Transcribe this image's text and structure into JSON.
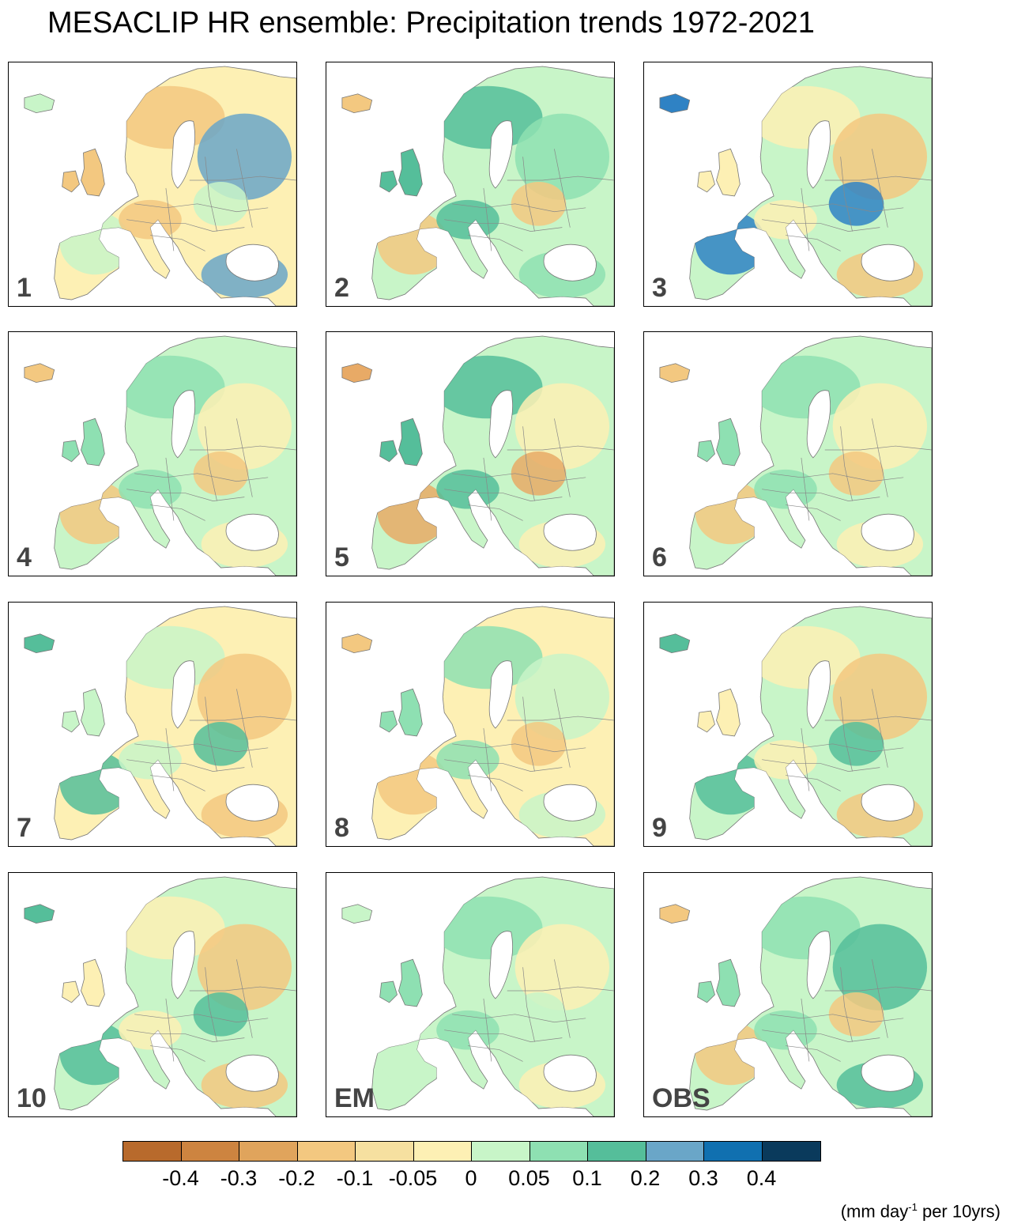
{
  "title": "MESACLIP HR ensemble: Precipitation trends 1972-2021",
  "panels": [
    {
      "label": "1",
      "dominant": "#fdf0b4",
      "patch_a": "#f3c880",
      "patch_b": "#6aa6c8",
      "patch_c": "#c8f5c8"
    },
    {
      "label": "2",
      "dominant": "#c8f5c8",
      "patch_a": "#55be9a",
      "patch_b": "#8ee0b2",
      "patch_c": "#f3c880"
    },
    {
      "label": "3",
      "dominant": "#c8f5c8",
      "patch_a": "#fdf0b4",
      "patch_b": "#f3c880",
      "patch_c": "#2f82c4"
    },
    {
      "label": "4",
      "dominant": "#c8f5c8",
      "patch_a": "#8ee0b2",
      "patch_b": "#fdf0b4",
      "patch_c": "#f3c880"
    },
    {
      "label": "5",
      "dominant": "#c8f5c8",
      "patch_a": "#55be9a",
      "patch_b": "#fdf0b4",
      "patch_c": "#e8aa66"
    },
    {
      "label": "6",
      "dominant": "#c8f5c8",
      "patch_a": "#8ee0b2",
      "patch_b": "#fdf0b4",
      "patch_c": "#f3c880"
    },
    {
      "label": "7",
      "dominant": "#fdf0b4",
      "patch_a": "#c8f5c8",
      "patch_b": "#f3c880",
      "patch_c": "#55be9a"
    },
    {
      "label": "8",
      "dominant": "#fdf0b4",
      "patch_a": "#8ee0b2",
      "patch_b": "#c8f5c8",
      "patch_c": "#f3c880"
    },
    {
      "label": "9",
      "dominant": "#c8f5c8",
      "patch_a": "#fdf0b4",
      "patch_b": "#f3c880",
      "patch_c": "#55be9a"
    },
    {
      "label": "10",
      "dominant": "#c8f5c8",
      "patch_a": "#fdf0b4",
      "patch_b": "#f3c880",
      "patch_c": "#55be9a"
    },
    {
      "label": "EM",
      "dominant": "#c8f5c8",
      "patch_a": "#8ee0b2",
      "patch_b": "#fdf0b4",
      "patch_c": "#c8f5c8"
    },
    {
      "label": "OBS",
      "dominant": "#c8f5c8",
      "patch_a": "#8ee0b2",
      "patch_b": "#55be9a",
      "patch_c": "#f3c880"
    }
  ],
  "colorbar": {
    "colors": [
      "#b86a2c",
      "#cd8440",
      "#e0a45c",
      "#f3c880",
      "#f6e0a0",
      "#fdf0b4",
      "#c8f5c8",
      "#8ee0b2",
      "#55be9a",
      "#6aa6c8",
      "#1070b0",
      "#0a3a5c"
    ],
    "tick_labels": [
      "-0.4",
      "-0.3",
      "-0.2",
      "-0.1",
      "-0.05",
      "0",
      "0.05",
      "0.1",
      "0.2",
      "0.3",
      "0.4"
    ]
  },
  "units_text": "(mm day",
  "units_sup": "-1",
  "units_suffix": " per 10yrs)"
}
